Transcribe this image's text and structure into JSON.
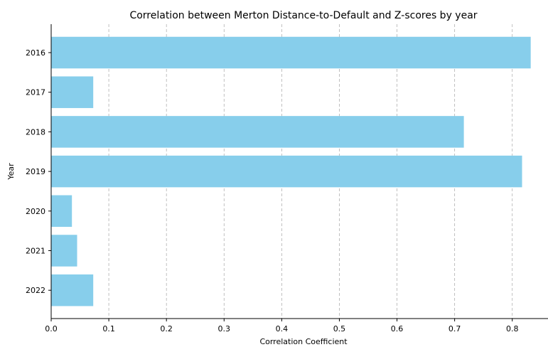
{
  "chart_data": {
    "type": "bar",
    "orientation": "horizontal",
    "title": "Correlation between Merton Distance-to-Default and Z-scores by year",
    "xlabel": "Correlation Coefficient",
    "ylabel": "Year",
    "categories": [
      "2016",
      "2017",
      "2018",
      "2019",
      "2020",
      "2021",
      "2022"
    ],
    "values": [
      0.832,
      0.073,
      0.716,
      0.817,
      0.036,
      0.045,
      0.073
    ],
    "xlim": [
      0,
      0.862
    ],
    "xticks": [
      0.0,
      0.1,
      0.2,
      0.3,
      0.4,
      0.5,
      0.6,
      0.7,
      0.8
    ],
    "xtick_labels": [
      "0.0",
      "0.1",
      "0.2",
      "0.3",
      "0.4",
      "0.5",
      "0.6",
      "0.7",
      "0.8"
    ],
    "grid": "x",
    "bar_color": "#87ceeb"
  }
}
